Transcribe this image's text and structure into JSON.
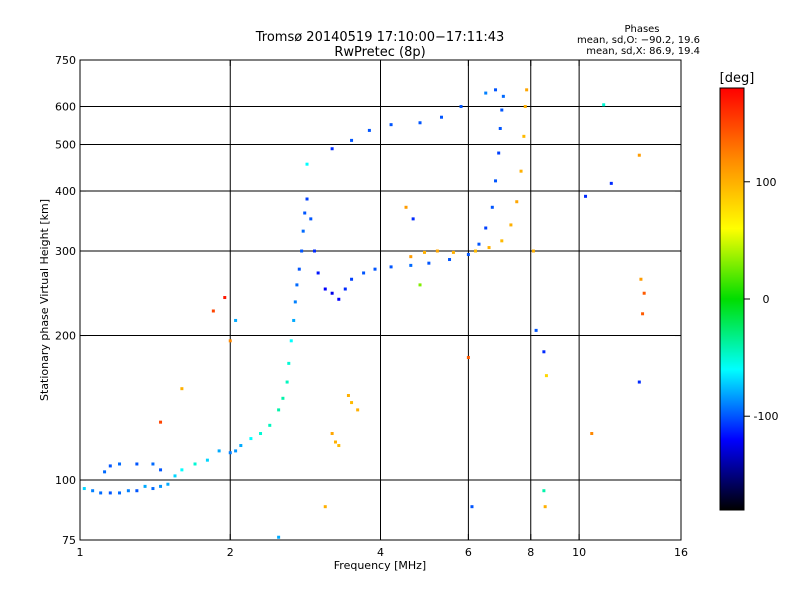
{
  "chart_data": {
    "type": "scatter",
    "title": "Tromsø 20140519 17:10:00−17:11:43",
    "subtitle": "RwPretec (8p)",
    "phases": {
      "heading": "Phases",
      "line_o": "mean, sd,O: −90.2, 19.6",
      "line_x": "mean, sd,X:  86.9, 19.4"
    },
    "xlabel": "Frequency [MHz]",
    "ylabel": "Stationary phase Virtual Height [km]",
    "x_scale": "log",
    "y_scale": "log",
    "xlim": [
      1,
      16
    ],
    "ylim": [
      75,
      750
    ],
    "x_ticks": [
      1,
      2,
      4,
      6,
      8,
      10,
      16
    ],
    "x_tick_labels": [
      "1",
      "2",
      "4",
      "6",
      "8",
      "10",
      "16"
    ],
    "y_ticks": [
      75,
      100,
      200,
      300,
      400,
      500,
      600,
      750
    ],
    "y_tick_labels": [
      "75",
      "100",
      "200",
      "300",
      "400",
      "500",
      "600",
      "750"
    ],
    "grid_x": [
      2,
      4,
      6,
      8,
      10
    ],
    "grid_y": [
      100,
      200,
      300,
      400,
      500,
      600
    ],
    "colorbar": {
      "label": "[deg]",
      "range": [
        -180,
        180
      ],
      "ticks": [
        100,
        0,
        -100
      ],
      "tick_labels": [
        "100",
        "0",
        "-100"
      ],
      "colors": [
        "#ff0000",
        "#ff8800",
        "#ffff00",
        "#00dd00",
        "#00ffff",
        "#0000ff",
        "#000000"
      ]
    },
    "series": [
      {
        "mode": "O",
        "points": [
          {
            "x": 1.02,
            "y": 96,
            "p": -70
          },
          {
            "x": 1.06,
            "y": 95,
            "p": -90
          },
          {
            "x": 1.1,
            "y": 94,
            "p": -95
          },
          {
            "x": 1.15,
            "y": 94,
            "p": -100
          },
          {
            "x": 1.2,
            "y": 94,
            "p": -95
          },
          {
            "x": 1.25,
            "y": 95,
            "p": -90
          },
          {
            "x": 1.3,
            "y": 95,
            "p": -100
          },
          {
            "x": 1.12,
            "y": 104,
            "p": -95
          },
          {
            "x": 1.15,
            "y": 107,
            "p": -100
          },
          {
            "x": 1.2,
            "y": 108,
            "p": -95
          },
          {
            "x": 1.3,
            "y": 108,
            "p": -100
          },
          {
            "x": 1.4,
            "y": 108,
            "p": -95
          },
          {
            "x": 1.45,
            "y": 105,
            "p": -100
          },
          {
            "x": 1.35,
            "y": 97,
            "p": -80
          },
          {
            "x": 1.4,
            "y": 96,
            "p": -95
          },
          {
            "x": 1.45,
            "y": 97,
            "p": -85
          },
          {
            "x": 1.5,
            "y": 98,
            "p": -80
          },
          {
            "x": 1.55,
            "y": 102,
            "p": -70
          },
          {
            "x": 1.6,
            "y": 105,
            "p": -60
          },
          {
            "x": 1.7,
            "y": 108,
            "p": -50
          },
          {
            "x": 1.8,
            "y": 110,
            "p": -70
          },
          {
            "x": 1.9,
            "y": 115,
            "p": -80
          },
          {
            "x": 2.0,
            "y": 114,
            "p": -90
          },
          {
            "x": 2.05,
            "y": 115,
            "p": -85
          },
          {
            "x": 2.1,
            "y": 118,
            "p": -80
          },
          {
            "x": 2.2,
            "y": 122,
            "p": -60
          },
          {
            "x": 2.3,
            "y": 125,
            "p": -50
          },
          {
            "x": 2.4,
            "y": 130,
            "p": -45
          },
          {
            "x": 2.5,
            "y": 140,
            "p": -40
          },
          {
            "x": 2.55,
            "y": 148,
            "p": -40
          },
          {
            "x": 2.6,
            "y": 160,
            "p": -45
          },
          {
            "x": 2.62,
            "y": 175,
            "p": -50
          },
          {
            "x": 2.65,
            "y": 195,
            "p": -60
          },
          {
            "x": 2.68,
            "y": 215,
            "p": -80
          },
          {
            "x": 2.7,
            "y": 235,
            "p": -90
          },
          {
            "x": 2.72,
            "y": 255,
            "p": -95
          },
          {
            "x": 2.75,
            "y": 275,
            "p": -100
          },
          {
            "x": 2.78,
            "y": 300,
            "p": -100
          },
          {
            "x": 2.8,
            "y": 330,
            "p": -95
          },
          {
            "x": 2.82,
            "y": 360,
            "p": -100
          },
          {
            "x": 2.85,
            "y": 385,
            "p": -105
          },
          {
            "x": 2.9,
            "y": 350,
            "p": -100
          },
          {
            "x": 2.95,
            "y": 300,
            "p": -110
          },
          {
            "x": 3.0,
            "y": 270,
            "p": -115
          },
          {
            "x": 3.1,
            "y": 250,
            "p": -120
          },
          {
            "x": 3.2,
            "y": 245,
            "p": -125
          },
          {
            "x": 3.3,
            "y": 238,
            "p": -120
          },
          {
            "x": 3.4,
            "y": 250,
            "p": -110
          },
          {
            "x": 3.5,
            "y": 262,
            "p": -105
          },
          {
            "x": 3.7,
            "y": 270,
            "p": -100
          },
          {
            "x": 3.9,
            "y": 275,
            "p": -100
          },
          {
            "x": 4.2,
            "y": 278,
            "p": -100
          },
          {
            "x": 4.6,
            "y": 280,
            "p": -95
          },
          {
            "x": 5.0,
            "y": 283,
            "p": -100
          },
          {
            "x": 5.5,
            "y": 288,
            "p": -100
          },
          {
            "x": 6.0,
            "y": 295,
            "p": -100
          },
          {
            "x": 6.3,
            "y": 310,
            "p": -100
          },
          {
            "x": 6.5,
            "y": 335,
            "p": -105
          },
          {
            "x": 6.7,
            "y": 370,
            "p": -100
          },
          {
            "x": 6.8,
            "y": 420,
            "p": -100
          },
          {
            "x": 6.9,
            "y": 480,
            "p": -105
          },
          {
            "x": 6.95,
            "y": 540,
            "p": -100
          },
          {
            "x": 7.0,
            "y": 590,
            "p": -100
          },
          {
            "x": 7.05,
            "y": 630,
            "p": -95
          },
          {
            "x": 6.8,
            "y": 650,
            "p": -100
          },
          {
            "x": 6.5,
            "y": 640,
            "p": -90
          },
          {
            "x": 3.2,
            "y": 490,
            "p": -110
          },
          {
            "x": 3.5,
            "y": 510,
            "p": -100
          },
          {
            "x": 3.8,
            "y": 535,
            "p": -100
          },
          {
            "x": 4.2,
            "y": 550,
            "p": -100
          },
          {
            "x": 4.8,
            "y": 555,
            "p": -100
          },
          {
            "x": 5.3,
            "y": 570,
            "p": -100
          },
          {
            "x": 5.8,
            "y": 600,
            "p": -100
          }
        ]
      },
      {
        "mode": "X",
        "points": [
          {
            "x": 3.45,
            "y": 150,
            "p": 100
          },
          {
            "x": 3.5,
            "y": 145,
            "p": 95
          },
          {
            "x": 3.6,
            "y": 140,
            "p": 100
          },
          {
            "x": 3.2,
            "y": 125,
            "p": 105
          },
          {
            "x": 3.25,
            "y": 120,
            "p": 100
          },
          {
            "x": 3.3,
            "y": 118,
            "p": 95
          },
          {
            "x": 4.6,
            "y": 292,
            "p": 110
          },
          {
            "x": 4.9,
            "y": 298,
            "p": 100
          },
          {
            "x": 5.2,
            "y": 300,
            "p": 105
          },
          {
            "x": 5.6,
            "y": 298,
            "p": 100
          },
          {
            "x": 6.2,
            "y": 300,
            "p": 95
          },
          {
            "x": 6.6,
            "y": 305,
            "p": 100
          },
          {
            "x": 7.0,
            "y": 315,
            "p": 95
          },
          {
            "x": 7.3,
            "y": 340,
            "p": 100
          },
          {
            "x": 7.5,
            "y": 380,
            "p": 105
          },
          {
            "x": 7.65,
            "y": 440,
            "p": 100
          },
          {
            "x": 7.75,
            "y": 520,
            "p": 95
          },
          {
            "x": 7.8,
            "y": 600,
            "p": 100
          },
          {
            "x": 7.85,
            "y": 650,
            "p": 105
          }
        ]
      },
      {
        "mode": "scattered",
        "points": [
          {
            "x": 1.45,
            "y": 132,
            "p": 150
          },
          {
            "x": 1.6,
            "y": 155,
            "p": 100
          },
          {
            "x": 1.85,
            "y": 225,
            "p": 150
          },
          {
            "x": 1.95,
            "y": 240,
            "p": 170
          },
          {
            "x": 2.0,
            "y": 195,
            "p": 120
          },
          {
            "x": 2.05,
            "y": 215,
            "p": -80
          },
          {
            "x": 2.85,
            "y": 455,
            "p": -60
          },
          {
            "x": 4.5,
            "y": 370,
            "p": 110
          },
          {
            "x": 4.65,
            "y": 350,
            "p": -110
          },
          {
            "x": 4.8,
            "y": 255,
            "p": 30
          },
          {
            "x": 6.0,
            "y": 180,
            "p": 140
          },
          {
            "x": 6.1,
            "y": 88,
            "p": -100
          },
          {
            "x": 8.2,
            "y": 205,
            "p": -100
          },
          {
            "x": 8.5,
            "y": 185,
            "p": -110
          },
          {
            "x": 8.6,
            "y": 165,
            "p": 80
          },
          {
            "x": 8.5,
            "y": 95,
            "p": -40
          },
          {
            "x": 8.55,
            "y": 88,
            "p": 100
          },
          {
            "x": 10.3,
            "y": 390,
            "p": -110
          },
          {
            "x": 10.6,
            "y": 125,
            "p": 120
          },
          {
            "x": 11.6,
            "y": 415,
            "p": -110
          },
          {
            "x": 11.2,
            "y": 605,
            "p": -50
          },
          {
            "x": 13.2,
            "y": 475,
            "p": 110
          },
          {
            "x": 13.3,
            "y": 262,
            "p": 110
          },
          {
            "x": 13.5,
            "y": 245,
            "p": 140
          },
          {
            "x": 13.4,
            "y": 222,
            "p": 140
          },
          {
            "x": 13.2,
            "y": 160,
            "p": -110
          },
          {
            "x": 2.5,
            "y": 76,
            "p": -80
          },
          {
            "x": 3.1,
            "y": 88,
            "p": 100
          },
          {
            "x": 8.1,
            "y": 300,
            "p": 100
          }
        ]
      }
    ]
  }
}
